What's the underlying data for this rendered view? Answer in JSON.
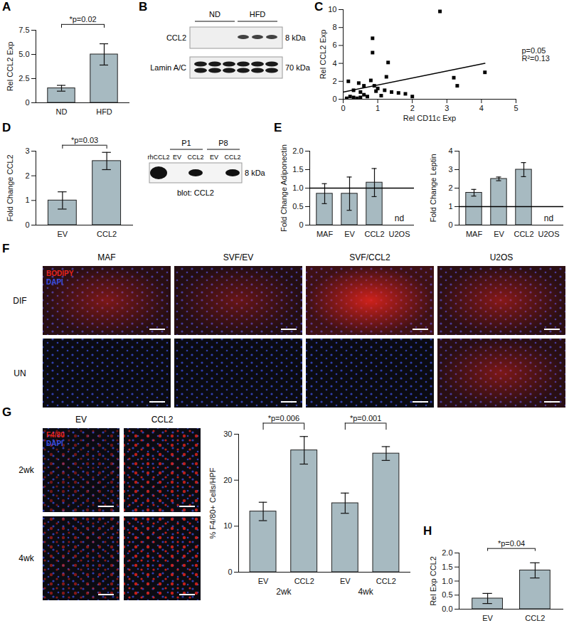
{
  "chart_data": [
    {
      "panel": "A",
      "type": "bar",
      "categories": [
        "ND",
        "HFD"
      ],
      "values": [
        1.5,
        5.0
      ],
      "errors": [
        0.3,
        1.1
      ],
      "ylabel": "Rel CCL2 Exp",
      "ylim": [
        0,
        7.5
      ],
      "yticks": [
        0,
        2.5,
        {
          "value": 5,
          "label": "5.0"
        },
        7.5
      ],
      "color": "#a7bac1",
      "annotations": [
        {
          "from": 0,
          "to": 1,
          "text": "*p=0.02"
        }
      ]
    },
    {
      "panel": "C",
      "type": "scatter",
      "marker": "square",
      "x": [
        2.8,
        0.85,
        0.85,
        1.3,
        0.15,
        0.45,
        0.8,
        1.25,
        3.2,
        3.3,
        4.1,
        0.6,
        0.9,
        1.0,
        1.4,
        1.6,
        2.0,
        1.8,
        0.3,
        0.5,
        0.2,
        0.3,
        0.4,
        0.6,
        0.7,
        0.1,
        0.5,
        1.1,
        0.95,
        1.2
      ],
      "values": [
        9.8,
        6.8,
        5.2,
        4.1,
        2.0,
        1.8,
        2.1,
        2.5,
        2.4,
        1.5,
        3.0,
        1.5,
        1.5,
        1.2,
        0.8,
        0.7,
        0.3,
        0.6,
        1.0,
        0.8,
        0.3,
        0.2,
        0.1,
        0.5,
        0.3,
        0.1,
        0.2,
        0.4,
        0.9,
        1.0
      ],
      "fit_line": {
        "x": [
          0,
          4.1
        ],
        "y": [
          0.8,
          4.0
        ]
      },
      "xlabel": "Rel CD11c Exp",
      "ylabel": "Rel CCL2 Exp",
      "xlim": [
        0,
        5
      ],
      "xticks": [
        0,
        1,
        2,
        3,
        4,
        5
      ],
      "ylim": [
        0,
        10
      ],
      "yticks": [
        0,
        2,
        4,
        6,
        8,
        10
      ],
      "annotations": [
        "p=0.05",
        "R²=0.13"
      ]
    },
    {
      "panel": "D",
      "type": "bar",
      "categories": [
        "EV",
        "CCL2"
      ],
      "values": [
        1.0,
        2.6
      ],
      "errors": [
        0.35,
        0.35
      ],
      "ylabel": "Fold Change CCL2",
      "ylim": [
        0,
        3
      ],
      "yticks": [
        0,
        1,
        2,
        3
      ],
      "color": "#a7bac1",
      "annotations": [
        {
          "from": 0,
          "to": 1,
          "text": "*p=0.03"
        }
      ]
    },
    {
      "panel": "E",
      "type": "bar",
      "categories": [
        "MAF",
        "EV",
        "CCL2",
        "U2OS"
      ],
      "values": [
        0.85,
        0.85,
        1.15,
        null
      ],
      "errors": [
        0.27,
        0.45,
        0.38,
        null
      ],
      "ylabel": "Fold Change Adiponectin",
      "ylim": [
        0,
        2
      ],
      "yticks": [
        0,
        0.5,
        {
          "value": 1,
          "label": "1.0"
        },
        1.5,
        {
          "value": 2,
          "label": "2.0"
        }
      ],
      "reference_line": 1,
      "color": "#a7bac1",
      "annotations": [
        {
          "at": 3,
          "text": "nd"
        }
      ]
    },
    {
      "type": "bar",
      "categories": [
        "MAF",
        "EV",
        "CCL2",
        "U2OS"
      ],
      "values": [
        1.75,
        2.5,
        3.0,
        null
      ],
      "errors": [
        0.18,
        0.1,
        0.38,
        null
      ],
      "ylabel": "Fold Change Leptin",
      "ylim": [
        0,
        4
      ],
      "yticks": [
        0,
        1,
        2,
        3,
        4
      ],
      "reference_line": 1,
      "color": "#a7bac1",
      "annotations": [
        {
          "at": 3,
          "text": "nd"
        }
      ]
    },
    {
      "type": "bar",
      "categories": [
        "EV",
        "CCL2",
        "EV",
        "CCL2"
      ],
      "groups": [
        "2wk",
        "2wk",
        "4wk",
        "4wk"
      ],
      "values": [
        13.2,
        26.5,
        15,
        25.8
      ],
      "errors": [
        2,
        3,
        2.2,
        1.5
      ],
      "ylabel": "% F4/80+ Cells/HPF",
      "ylim": [
        0,
        30
      ],
      "yticks": [
        0,
        10,
        20,
        30
      ],
      "color": "#a7bac1",
      "annotations": [
        {
          "from": 0,
          "to": 1,
          "text": "*p=0.006"
        },
        {
          "from": 2,
          "to": 3,
          "text": "*p=0.001"
        }
      ]
    },
    {
      "panel": "H",
      "type": "bar",
      "categories": [
        "EV",
        "CCL2"
      ],
      "values": [
        0.38,
        1.38
      ],
      "errors": [
        0.18,
        0.27
      ],
      "ylabel": "Rel Exp CCL2",
      "ylim": [
        0,
        2
      ],
      "yticks": [
        {
          "value": 0,
          "label": "0.0"
        },
        0.5,
        {
          "value": 1,
          "label": "1.0"
        },
        1.5,
        {
          "value": 2,
          "label": "2.0"
        }
      ],
      "color": "#a7bac1",
      "annotations": [
        {
          "from": 0,
          "to": 1,
          "text": "*p=0.04"
        }
      ]
    }
  ],
  "blot_b": {
    "panel": "B",
    "groups": [
      {
        "label": "ND",
        "lanes": 3
      },
      {
        "label": "HFD",
        "lanes": 3
      }
    ],
    "rows": [
      {
        "label": "CCL2",
        "size": "8 kDa"
      },
      {
        "label": "Lamin A/C",
        "size": "70 kDa"
      }
    ]
  },
  "blot_d": {
    "lanes": [
      "rhCCL2",
      "EV",
      "CCL2",
      "EV",
      "CCL2"
    ],
    "passages": [
      {
        "label": "P1",
        "lanes": [
          1,
          2
        ]
      },
      {
        "label": "P8",
        "lanes": [
          3,
          4
        ]
      }
    ],
    "size": "8 kDa",
    "caption": "blot: CCL2"
  },
  "images_f": {
    "panel": "F",
    "stains": [
      {
        "name": "BODIPY",
        "color": "#e3241c"
      },
      {
        "name": "DAPI",
        "color": "#3b4fe0"
      }
    ],
    "columns": [
      "MAF",
      "SVF/EV",
      "SVF/CCL2",
      "U2OS"
    ],
    "rows": [
      "DIF",
      "UN"
    ]
  },
  "images_g": {
    "panel": "G",
    "stains": [
      {
        "name": "F4/80",
        "color": "#e3241c"
      },
      {
        "name": "DAPI",
        "color": "#3b4fe0"
      }
    ],
    "columns": [
      "EV",
      "CCL2"
    ],
    "rows": [
      "2wk",
      "4wk"
    ]
  }
}
